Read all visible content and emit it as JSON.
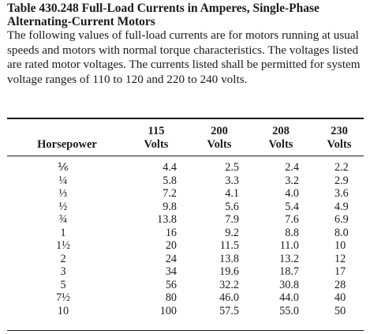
{
  "document": {
    "title_line1": "Table 430.248  Full-Load Currents in Amperes, Single-Phase",
    "title_line2": "Alternating-Current Motors",
    "description": "The following values of full-load currents are for motors running at usual speeds and motors with normal torque characteristics. The voltages listed are rated motor voltages. The currents listed shall be permitted for system voltage ranges of 110 to 120 and 220 to 240 volts."
  },
  "table": {
    "headers": {
      "horsepower": "Horsepower",
      "v115_top": "115",
      "v115_bottom": "Volts",
      "v200_top": "200",
      "v200_bottom": "Volts",
      "v208_top": "208",
      "v208_bottom": "Volts",
      "v230_top": "230",
      "v230_bottom": "Volts"
    },
    "rows": [
      {
        "hp": "⅙",
        "v115": "4.4",
        "v200": "2.5",
        "v208": "2.4",
        "v230": "2.2"
      },
      {
        "hp": "¼",
        "v115": "5.8",
        "v200": "3.3",
        "v208": "3.2",
        "v230": "2.9"
      },
      {
        "hp": "⅓",
        "v115": "7.2",
        "v200": "4.1",
        "v208": "4.0",
        "v230": "3.6"
      },
      {
        "hp": "½",
        "v115": "9.8",
        "v200": "5.6",
        "v208": "5.4",
        "v230": "4.9"
      },
      {
        "hp": "¾",
        "v115": "13.8",
        "v200": "7.9",
        "v208": "7.6",
        "v230": "6.9"
      },
      {
        "hp": "1",
        "v115": "16",
        "v200": "9.2",
        "v208": "8.8",
        "v230": "8.0"
      },
      {
        "hp": "1½",
        "v115": "20",
        "v200": "11.5",
        "v208": "11.0",
        "v230": "10"
      },
      {
        "hp": "2",
        "v115": "24",
        "v200": "13.8",
        "v208": "13.2",
        "v230": "12"
      },
      {
        "hp": "3",
        "v115": "34",
        "v200": "19.6",
        "v208": "18.7",
        "v230": "17"
      },
      {
        "hp": "5",
        "v115": "56",
        "v200": "32.2",
        "v208": "30.8",
        "v230": "28"
      },
      {
        "hp": "7½",
        "v115": "80",
        "v200": "46.0",
        "v208": "44.0",
        "v230": "40"
      },
      {
        "hp": "10",
        "v115": "100",
        "v200": "57.5",
        "v208": "55.0",
        "v230": "50"
      }
    ]
  }
}
